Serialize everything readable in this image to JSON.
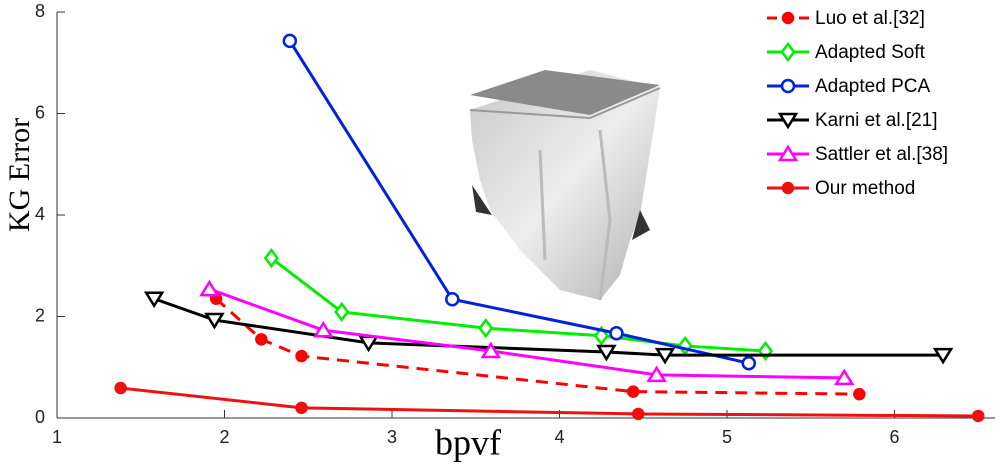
{
  "chart_data": {
    "type": "line",
    "x_label": "bpvf",
    "y_label": "KG Error",
    "xlim": [
      1,
      6.6
    ],
    "ylim": [
      0,
      8
    ],
    "xticks": [
      1,
      2,
      3,
      4,
      5,
      6
    ],
    "yticks": [
      0,
      2,
      4,
      6,
      8
    ],
    "legend": "upper right",
    "series": [
      {
        "name": "Luo et al.[32]",
        "color": "#ff0000",
        "line_style": "dashed",
        "marker": "circle",
        "marker_fill": true,
        "x": [
          1.95,
          2.22,
          2.46,
          4.44,
          5.79
        ],
        "values": [
          2.35,
          1.55,
          1.22,
          0.52,
          0.47
        ]
      },
      {
        "name": "Adapted Soft",
        "color": "#00ee00",
        "line_style": "solid",
        "marker": "diamond",
        "marker_fill": false,
        "x": [
          2.28,
          2.7,
          3.56,
          4.25,
          4.75,
          5.23
        ],
        "values": [
          3.15,
          2.09,
          1.77,
          1.62,
          1.42,
          1.32
        ]
      },
      {
        "name": "Adapted PCA",
        "color": "#0022dd",
        "line_style": "solid",
        "marker": "circle",
        "marker_fill": false,
        "x": [
          2.39,
          3.36,
          4.34,
          5.13
        ],
        "values": [
          7.43,
          2.34,
          1.67,
          1.08
        ]
      },
      {
        "name": "Karni et al.[21]",
        "color": "#000000",
        "line_style": "solid",
        "marker": "triangle-down",
        "marker_fill": false,
        "x": [
          1.58,
          1.94,
          2.86,
          4.28,
          4.63,
          6.29
        ],
        "values": [
          2.35,
          1.93,
          1.48,
          1.3,
          1.24,
          1.24
        ]
      },
      {
        "name": "Sattler et al.[38]",
        "color": "#ff00ff",
        "line_style": "solid",
        "marker": "triangle-up",
        "marker_fill": false,
        "x": [
          1.91,
          2.59,
          3.59,
          4.58,
          5.7
        ],
        "values": [
          2.54,
          1.73,
          1.32,
          0.85,
          0.79
        ]
      },
      {
        "name": "Our method",
        "color": "#ee1111",
        "line_style": "solid",
        "marker": "circle",
        "marker_fill": true,
        "x": [
          1.38,
          2.46,
          4.47,
          6.5
        ],
        "values": [
          0.59,
          0.2,
          0.08,
          0.04
        ]
      }
    ]
  }
}
